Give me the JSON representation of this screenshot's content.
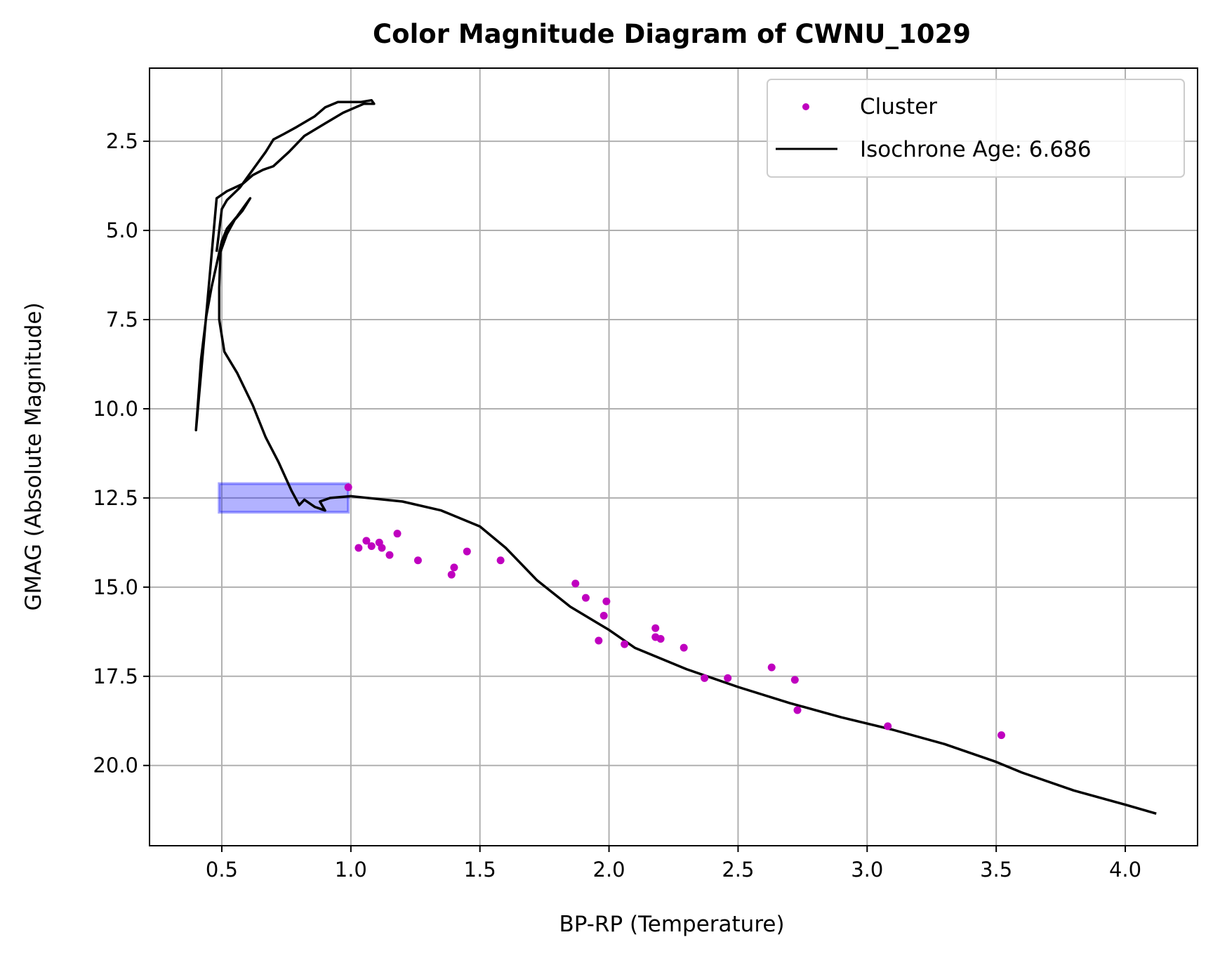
{
  "chart_data": {
    "type": "scatter",
    "title": "Color Magnitude Diagram of CWNU_1029",
    "xlabel": "BP-RP (Temperature)",
    "ylabel": "GMAG (Absolute Magnitude)",
    "xlim": [
      0.22,
      4.28
    ],
    "ylim": [
      22.25,
      0.45
    ],
    "y_inverted": true,
    "grid": true,
    "legend_position": "top-right",
    "xticks": [
      0.5,
      1.0,
      1.5,
      2.0,
      2.5,
      3.0,
      3.5,
      4.0
    ],
    "xtick_labels": [
      "0.5",
      "1.0",
      "1.5",
      "2.0",
      "2.5",
      "3.0",
      "3.5",
      "4.0"
    ],
    "yticks": [
      2.5,
      5.0,
      7.5,
      10.0,
      12.5,
      15.0,
      17.5,
      20.0
    ],
    "ytick_labels": [
      "2.5",
      "5.0",
      "7.5",
      "10.0",
      "12.5",
      "15.0",
      "17.5",
      "20.0"
    ],
    "series": [
      {
        "name": "Cluster",
        "kind": "scatter",
        "color": "#bf00bf",
        "points": [
          [
            0.99,
            12.2
          ],
          [
            1.03,
            13.9
          ],
          [
            1.06,
            13.7
          ],
          [
            1.08,
            13.85
          ],
          [
            1.11,
            13.75
          ],
          [
            1.12,
            13.9
          ],
          [
            1.15,
            14.1
          ],
          [
            1.18,
            13.5
          ],
          [
            1.26,
            14.25
          ],
          [
            1.39,
            14.65
          ],
          [
            1.4,
            14.45
          ],
          [
            1.45,
            14.0
          ],
          [
            1.58,
            14.25
          ],
          [
            1.87,
            14.9
          ],
          [
            1.91,
            15.3
          ],
          [
            1.96,
            16.5
          ],
          [
            1.98,
            15.8
          ],
          [
            1.99,
            15.4
          ],
          [
            2.06,
            16.6
          ],
          [
            2.18,
            16.15
          ],
          [
            2.18,
            16.4
          ],
          [
            2.2,
            16.45
          ],
          [
            2.29,
            16.7
          ],
          [
            2.37,
            17.55
          ],
          [
            2.46,
            17.55
          ],
          [
            2.63,
            17.25
          ],
          [
            2.72,
            17.6
          ],
          [
            2.73,
            18.45
          ],
          [
            3.08,
            18.9
          ],
          [
            3.52,
            19.15
          ]
        ]
      },
      {
        "name": "Isochrone Age: 6.686",
        "kind": "line",
        "color": "#000000",
        "points": [
          [
            4.12,
            21.35
          ],
          [
            4.0,
            21.1
          ],
          [
            3.8,
            20.7
          ],
          [
            3.6,
            20.2
          ],
          [
            3.5,
            19.9
          ],
          [
            3.3,
            19.4
          ],
          [
            3.1,
            19.0
          ],
          [
            2.9,
            18.65
          ],
          [
            2.7,
            18.25
          ],
          [
            2.5,
            17.8
          ],
          [
            2.3,
            17.3
          ],
          [
            2.1,
            16.7
          ],
          [
            2.0,
            16.2
          ],
          [
            1.85,
            15.55
          ],
          [
            1.72,
            14.8
          ],
          [
            1.6,
            13.9
          ],
          [
            1.5,
            13.3
          ],
          [
            1.35,
            12.85
          ],
          [
            1.2,
            12.6
          ],
          [
            1.0,
            12.45
          ],
          [
            0.92,
            12.5
          ],
          [
            0.88,
            12.6
          ],
          [
            0.9,
            12.85
          ],
          [
            0.86,
            12.75
          ],
          [
            0.82,
            12.55
          ],
          [
            0.8,
            12.7
          ],
          [
            0.77,
            12.3
          ],
          [
            0.72,
            11.5
          ],
          [
            0.67,
            10.8
          ],
          [
            0.62,
            9.9
          ],
          [
            0.56,
            9.0
          ],
          [
            0.51,
            8.4
          ],
          [
            0.49,
            7.5
          ],
          [
            0.49,
            6.6
          ],
          [
            0.495,
            5.6
          ],
          [
            0.52,
            5.1
          ],
          [
            0.55,
            4.7
          ],
          [
            0.58,
            4.45
          ],
          [
            0.61,
            4.1
          ],
          [
            0.56,
            4.6
          ],
          [
            0.52,
            4.95
          ],
          [
            0.5,
            5.3
          ],
          [
            0.48,
            5.95
          ],
          [
            0.46,
            6.6
          ],
          [
            0.44,
            7.4
          ],
          [
            0.42,
            8.6
          ],
          [
            0.41,
            9.6
          ],
          [
            0.4,
            10.6
          ],
          [
            0.48,
            4.1
          ],
          [
            0.52,
            3.9
          ],
          [
            0.58,
            3.7
          ],
          [
            0.62,
            3.45
          ],
          [
            0.66,
            3.3
          ],
          [
            0.7,
            3.2
          ],
          [
            0.76,
            2.8
          ],
          [
            0.82,
            2.35
          ],
          [
            0.9,
            2.0
          ],
          [
            0.97,
            1.7
          ],
          [
            1.05,
            1.45
          ],
          [
            1.09,
            1.45
          ],
          [
            1.08,
            1.35
          ],
          [
            1.04,
            1.4
          ],
          [
            0.95,
            1.4
          ],
          [
            0.9,
            1.55
          ],
          [
            0.86,
            1.8
          ],
          [
            0.79,
            2.1
          ],
          [
            0.74,
            2.3
          ],
          [
            0.7,
            2.45
          ],
          [
            0.67,
            2.8
          ],
          [
            0.62,
            3.3
          ],
          [
            0.57,
            3.8
          ],
          [
            0.52,
            4.15
          ],
          [
            0.5,
            4.4
          ],
          [
            0.5,
            4.4
          ],
          [
            0.48,
            5.6
          ]
        ]
      }
    ],
    "highlight_box": {
      "color": "#0000ff",
      "x_range": [
        0.49,
        0.99
      ],
      "y_range": [
        12.1,
        12.9
      ]
    }
  }
}
